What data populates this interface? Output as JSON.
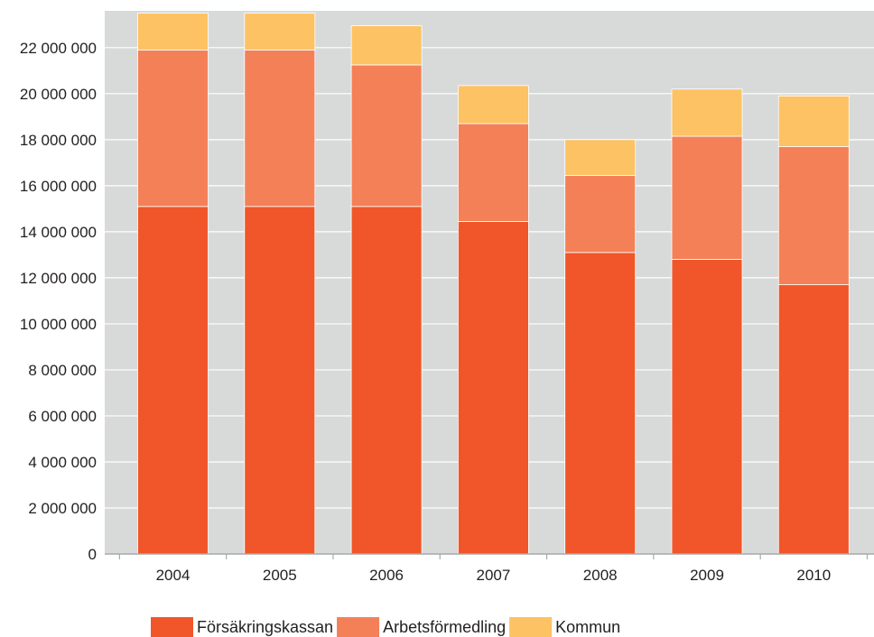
{
  "chart_data": {
    "type": "bar",
    "stacked": true,
    "categories": [
      "2004",
      "2005",
      "2006",
      "2007",
      "2008",
      "2009",
      "2010"
    ],
    "series": [
      {
        "name": "Försäkringskassan",
        "color": "#f05629",
        "values": [
          15100000,
          15100000,
          15100000,
          14450000,
          13100000,
          12800000,
          11700000
        ]
      },
      {
        "name": "Arbetsförmedling",
        "color": "#f48058",
        "values": [
          6800000,
          6800000,
          6150000,
          4250000,
          3350000,
          5350000,
          6000000
        ]
      },
      {
        "name": "Kommun",
        "color": "#fdc263",
        "values": [
          1600000,
          1600000,
          1700000,
          1650000,
          1550000,
          2050000,
          2200000
        ]
      }
    ],
    "ylim": [
      0,
      23600000
    ],
    "yticks": [
      0,
      2000000,
      4000000,
      6000000,
      8000000,
      10000000,
      12000000,
      14000000,
      16000000,
      18000000,
      20000000,
      22000000
    ],
    "ytick_labels": [
      "0",
      "2 000 000",
      "4 000 000",
      "6 000 000",
      "8 000 000",
      "10 000 000",
      "12 000 000",
      "14 000 000",
      "16 000 000",
      "18 000 000",
      "20 000 000",
      "22 000 000"
    ],
    "grid": true,
    "legend_position": "bottom",
    "title": "",
    "xlabel": "",
    "ylabel": "",
    "plot_background": "#d8d9d9"
  }
}
